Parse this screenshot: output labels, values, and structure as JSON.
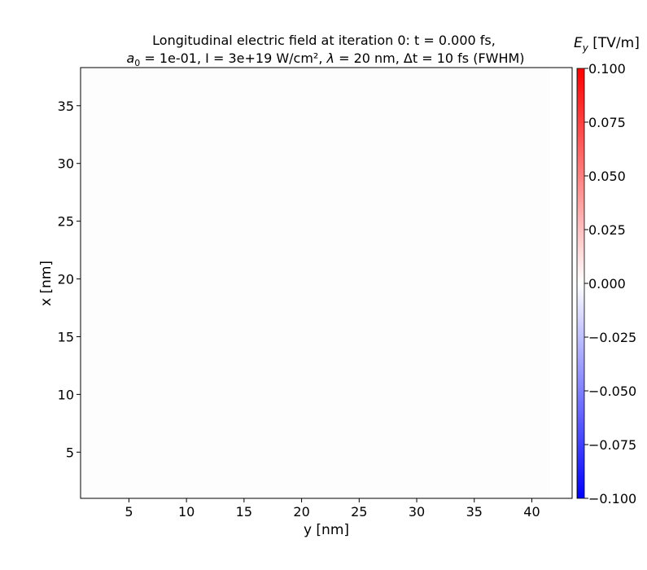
{
  "chart_data": {
    "type": "heatmap",
    "title_line1": "Longitudinal electric field at iteration 0: t = 0.000 fs,",
    "title_line2": {
      "a_symbol": "a",
      "a_subscript": "0",
      "rest": " = 1e-01, I = 3e+19 W/cm², ",
      "lambda_symbol": "λ",
      "rest2": " = 20 nm, Δt = 10 fs (FWHM)"
    },
    "xlabel": "y [nm]",
    "ylabel": "x [nm]",
    "xlim": [
      0.8,
      43.5
    ],
    "ylim": [
      1.0,
      38.3
    ],
    "xticks": [
      5,
      10,
      15,
      20,
      25,
      30,
      35,
      40
    ],
    "yticks": [
      5,
      10,
      15,
      20,
      25,
      30,
      35
    ],
    "field_extent": {
      "x": [
        0.8,
        41.6
      ],
      "y": [
        1.0,
        38.3
      ]
    },
    "field_value": 0.0,
    "colorbar": {
      "label_symbol": "E",
      "label_subscript": "y",
      "label_unit": " [TV/m]",
      "vmin": -0.1,
      "vmax": 0.1,
      "ticks": [
        "0.100",
        "0.075",
        "0.050",
        "0.025",
        "0.000",
        "−0.025",
        "−0.050",
        "−0.075",
        "−0.100"
      ],
      "tick_values": [
        0.1,
        0.075,
        0.05,
        0.025,
        0.0,
        -0.025,
        -0.05,
        -0.075,
        -0.1
      ],
      "colormap": "bwr",
      "color_min": "#0000ff",
      "color_mid": "#ffffff",
      "color_max": "#ff0000"
    },
    "grid": false
  }
}
